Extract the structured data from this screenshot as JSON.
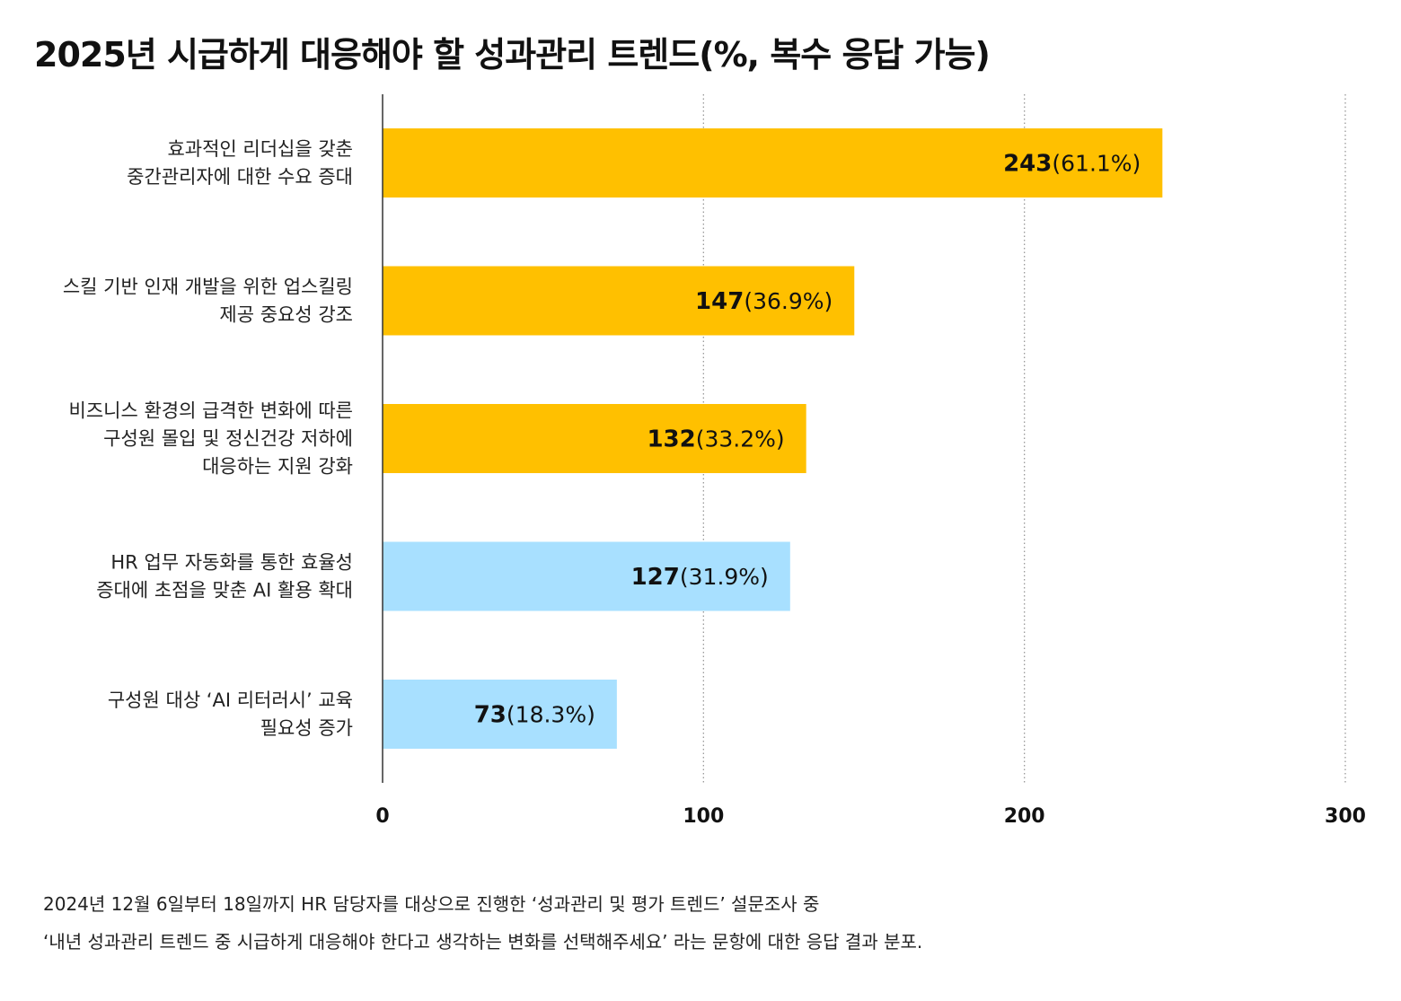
{
  "title": "2025년 시급하게 대응해야 할 성과관리 트렌드(%, 복수 응답 가능)",
  "chart_data": {
    "type": "bar",
    "orientation": "horizontal",
    "categories": [
      [
        "효과적인 리더십을 갖춘",
        "중간관리자에 대한 수요 증대"
      ],
      [
        "스킬 기반 인재 개발을 위한 업스킬링",
        "제공 중요성 강조"
      ],
      [
        "비즈니스 환경의 급격한 변화에 따른",
        "구성원 몰입 및 정신건강 저하에",
        "대응하는 지원 강화"
      ],
      [
        "HR 업무 자동화를 통한 효율성",
        "증대에 초점을 맞춘 AI 활용 확대"
      ],
      [
        "구성원 대상 ‘AI 리터러시’ 교육",
        "필요성 증가"
      ]
    ],
    "values": [
      243,
      147,
      132,
      127,
      73
    ],
    "value_labels": [
      "243",
      "147",
      "132",
      "127",
      "73"
    ],
    "percent_labels": [
      "(61.1%)",
      "(36.9%)",
      "(33.2%)",
      "(31.9%)",
      "(18.3%)"
    ],
    "bar_colors": [
      "#FFC000",
      "#FFC000",
      "#FFC000",
      "#A8E0FF",
      "#A8E0FF"
    ],
    "xlim": [
      0,
      300
    ],
    "xticks": [
      0,
      100,
      200,
      300
    ],
    "grid": "vertical dotted",
    "axis_color": "#333333",
    "grid_color": "#999999"
  },
  "note": {
    "line1": "2024년 12월 6일부터 18일까지 HR 담당자를 대상으로 진행한 ‘성과관리 및 평가 트렌드’ 설문조사 중",
    "line2": "‘내년 성과관리 트렌드 중 시급하게 대응해야 한다고 생각하는 변화를 선택해주세요’ 라는 문항에 대한 응답 결과 분포."
  }
}
